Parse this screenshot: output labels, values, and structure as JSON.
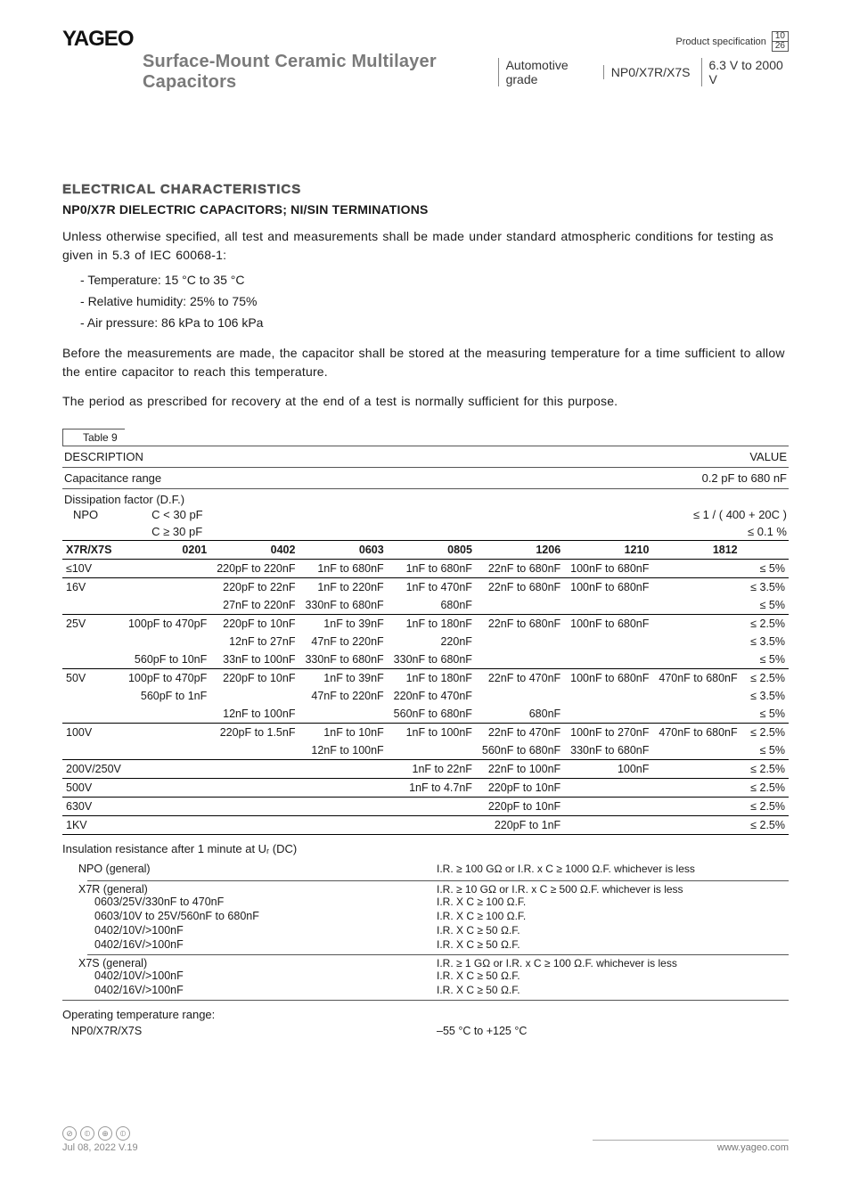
{
  "header": {
    "logo": "YAGEO",
    "spec_label": "Product specification",
    "page_num": "10",
    "page_total": "26",
    "main_title": "Surface-Mount Ceramic Multilayer Capacitors",
    "seg1": "Automotive grade",
    "seg2": "NP0/X7R/X7S",
    "seg3": "6.3 V to 2000 V"
  },
  "section": {
    "outline": "ELECTRICAL CHARACTERISTICS",
    "subhead": "NP0/X7R DIELECTRIC CAPACITORS; NI/SIN TERMINATIONS",
    "para1": "Unless otherwise specified, all test and measurements shall be made under standard atmospheric conditions for testing as given in 5.3 of IEC 60068-1:",
    "cond1": "Temperature: 15 °C to 35 °C",
    "cond2": "Relative humidity: 25% to 75%",
    "cond3": "Air pressure: 86 kPa to 106 kPa",
    "para2": "Before the measurements are made, the capacitor shall be stored at the measuring temperature for a time sufficient to allow the entire capacitor to reach this temperature.",
    "para3": "The period as prescribed for recovery at the end of a test is normally sufficient for this purpose.",
    "table_tag": "Table 9"
  },
  "table_head": {
    "desc": "DESCRIPTION",
    "value": "VALUE"
  },
  "cap_range": {
    "label": "Capacitance range",
    "value": "0.2 pF to 680 nF"
  },
  "df_label": "Dissipation factor (D.F.)",
  "npo": {
    "label": "NPO",
    "row1_cond": "C < 30 pF",
    "row1_val": "≤ 1 / ( 400 + 20C )",
    "row2_cond": "C ≥ 30 pF",
    "row2_val": "≤ 0.1 %"
  },
  "sizes": {
    "rowhdr": "X7R/X7S",
    "c0201": "0201",
    "c0402": "0402",
    "c0603": "0603",
    "c0805": "0805",
    "c1206": "1206",
    "c1210": "1210",
    "c1812": "1812"
  },
  "rows": [
    {
      "v": "≤10V",
      "c0201": "",
      "c0402": "220pF to 220nF",
      "c0603": "1nF to 680nF",
      "c0805": "1nF to 680nF",
      "c1206": "22nF to 680nF",
      "c1210": "100nF to 680nF",
      "c1812": "",
      "val": "≤ 5%",
      "sep": true
    },
    {
      "v": "16V",
      "c0201": "",
      "c0402": "220pF to 22nF",
      "c0603": "1nF to 220nF",
      "c0805": "1nF to 470nF",
      "c1206": "22nF to 680nF",
      "c1210": "100nF to 680nF",
      "c1812": "",
      "val": "≤ 3.5%",
      "sep": false
    },
    {
      "v": "",
      "c0201": "",
      "c0402": "27nF to 220nF",
      "c0603": "330nF to 680nF",
      "c0805": "680nF",
      "c1206": "",
      "c1210": "",
      "c1812": "",
      "val": "≤ 5%",
      "sep": true
    },
    {
      "v": "25V",
      "c0201": "100pF to 470pF",
      "c0402": "220pF to 10nF",
      "c0603": "1nF to 39nF",
      "c0805": "1nF to 180nF",
      "c1206": "22nF to 680nF",
      "c1210": "100nF to 680nF",
      "c1812": "",
      "val": "≤ 2.5%",
      "sep": false
    },
    {
      "v": "",
      "c0201": "",
      "c0402": "12nF to 27nF",
      "c0603": "47nF to 220nF",
      "c0805": "220nF",
      "c1206": "",
      "c1210": "",
      "c1812": "",
      "val": "≤ 3.5%",
      "sep": false
    },
    {
      "v": "",
      "c0201": "560pF to 10nF",
      "c0402": "33nF to 100nF",
      "c0603": "330nF to 680nF",
      "c0805": "330nF to 680nF",
      "c1206": "",
      "c1210": "",
      "c1812": "",
      "val": "≤ 5%",
      "sep": true
    },
    {
      "v": "50V",
      "c0201": "100pF to 470pF",
      "c0402": "220pF to 10nF",
      "c0603": "1nF to 39nF",
      "c0805": "1nF to 180nF",
      "c1206": "22nF to 470nF",
      "c1210": "100nF to 680nF",
      "c1812": "470nF to 680nF",
      "val": "≤ 2.5%",
      "sep": false
    },
    {
      "v": "",
      "c0201": "560pF to 1nF",
      "c0402": "",
      "c0603": "47nF to 220nF",
      "c0805": "220nF to 470nF",
      "c1206": "",
      "c1210": "",
      "c1812": "",
      "val": "≤ 3.5%",
      "sep": false
    },
    {
      "v": "",
      "c0201": "",
      "c0402": "12nF to 100nF",
      "c0603": "",
      "c0805": "560nF to 680nF",
      "c1206": "680nF",
      "c1210": "",
      "c1812": "",
      "val": "≤ 5%",
      "sep": true
    },
    {
      "v": "100V",
      "c0201": "",
      "c0402": "220pF to 1.5nF",
      "c0603": "1nF to 10nF",
      "c0805": "1nF to 100nF",
      "c1206": "22nF to 470nF",
      "c1210": "100nF to 270nF",
      "c1812": "470nF to 680nF",
      "val": "≤ 2.5%",
      "sep": false
    },
    {
      "v": "",
      "c0201": "",
      "c0402": "",
      "c0603": "12nF to 100nF",
      "c0805": "",
      "c1206": "560nF to 680nF",
      "c1210": "330nF to 680nF",
      "c1812": "",
      "val": "≤ 5%",
      "sep": true
    },
    {
      "v": "200V/250V",
      "c0201": "",
      "c0402": "",
      "c0603": "",
      "c0805": "1nF to 22nF",
      "c1206": "22nF to 100nF",
      "c1210": "100nF",
      "c1812": "",
      "val": "≤ 2.5%",
      "sep": true
    },
    {
      "v": "500V",
      "c0201": "",
      "c0402": "",
      "c0603": "",
      "c0805": "1nF to 4.7nF",
      "c1206": "220pF to 10nF",
      "c1210": "",
      "c1812": "",
      "val": "≤ 2.5%",
      "sep": true
    },
    {
      "v": "630V",
      "c0201": "",
      "c0402": "",
      "c0603": "",
      "c0805": "",
      "c1206": "220pF to 10nF",
      "c1210": "",
      "c1812": "",
      "val": "≤ 2.5%",
      "sep": true
    },
    {
      "v": "1KV",
      "c0201": "",
      "c0402": "",
      "c0603": "",
      "c0805": "",
      "c1206": "220pF to 1nF",
      "c1210": "",
      "c1812": "",
      "val": "≤ 2.5%",
      "sep": true
    }
  ],
  "ins": {
    "heading": "Insulation resistance after 1 minute at Uᵣ (DC)",
    "npo_label": "NPO (general)",
    "npo_val": "I.R. ≥ 100 GΩ or I.R. x C ≥ 1000 Ω.F. whichever is less",
    "x7r_label": "X7R (general)",
    "x7r_val": "I.R. ≥ 10 GΩ or I.R. x C ≥ 500 Ω.F. whichever is less",
    "x7r_rows": [
      [
        "0603/25V/330nF to 470nF",
        "I.R. X C ≥ 100 Ω.F."
      ],
      [
        "0603/10V to 25V/560nF to 680nF",
        "I.R. X C ≥ 100 Ω.F."
      ],
      [
        "0402/10V/>100nF",
        "I.R. X C ≥ 50 Ω.F."
      ],
      [
        "0402/16V/>100nF",
        "I.R. X C ≥ 50 Ω.F."
      ]
    ],
    "x7s_label": "X7S (general)",
    "x7s_val": "I.R. ≥ 1 GΩ or I.R. x C ≥ 100 Ω.F. whichever is less",
    "x7s_rows": [
      [
        "0402/10V/>100nF",
        "I.R. X C ≥ 50 Ω.F."
      ],
      [
        "0402/16V/>100nF",
        "I.R. X C ≥ 50 Ω.F."
      ]
    ]
  },
  "optemp": {
    "label": "Operating temperature range:",
    "row_l": "NP0/X7R/X7S",
    "row_v": "–55 °C to +125 °C"
  },
  "footer": {
    "date": "Jul 08, 2022 V.19",
    "url": "www.yageo.com"
  }
}
